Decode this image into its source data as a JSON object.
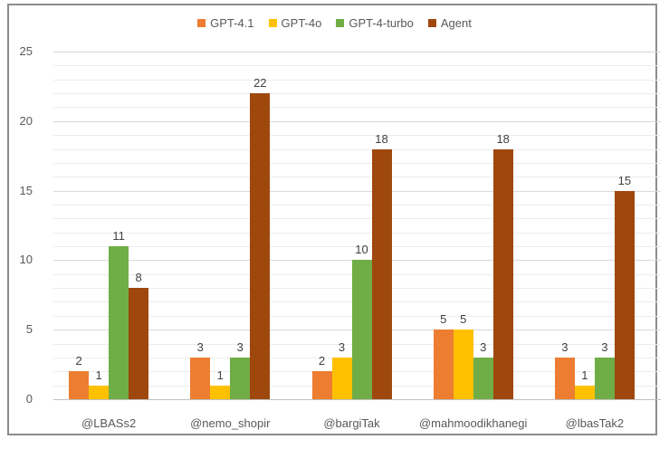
{
  "chart_data": {
    "type": "bar",
    "title": "",
    "xlabel": "",
    "ylabel": "",
    "ylim": [
      0,
      25
    ],
    "yticks": [
      0,
      5,
      10,
      15,
      20,
      25
    ],
    "grid": true,
    "legend_position": "top",
    "categories": [
      "@LBASs2",
      "@nemo_shopir",
      "@bargiTak",
      "@mahmoodikhanegi",
      "@lbasTak2"
    ],
    "series": [
      {
        "name": "GPT-4.1",
        "color": "#ED7D31",
        "values": [
          2,
          3,
          2,
          5,
          3
        ]
      },
      {
        "name": "GPT-4o",
        "color": "#FFC000",
        "values": [
          1,
          1,
          3,
          5,
          1
        ]
      },
      {
        "name": "GPT-4-turbo",
        "color": "#70AD47",
        "values": [
          11,
          3,
          10,
          3,
          3
        ]
      },
      {
        "name": "Agent",
        "color": "#9E480E",
        "values": [
          8,
          22,
          18,
          18,
          15
        ]
      }
    ]
  },
  "legend": {
    "items": [
      {
        "label": "GPT-4.1",
        "color": "#ED7D31"
      },
      {
        "label": "GPT-4o",
        "color": "#FFC000"
      },
      {
        "label": "GPT-4-turbo",
        "color": "#70AD47"
      },
      {
        "label": "Agent",
        "color": "#9E480E"
      }
    ]
  },
  "axis": {
    "y_ticks": [
      "0",
      "5",
      "10",
      "15",
      "20",
      "25"
    ],
    "x_labels": [
      "@LBASs2",
      "@nemo_shopir",
      "@bargiTak",
      "@mahmoodikhanegi",
      "@lbasTak2"
    ]
  }
}
